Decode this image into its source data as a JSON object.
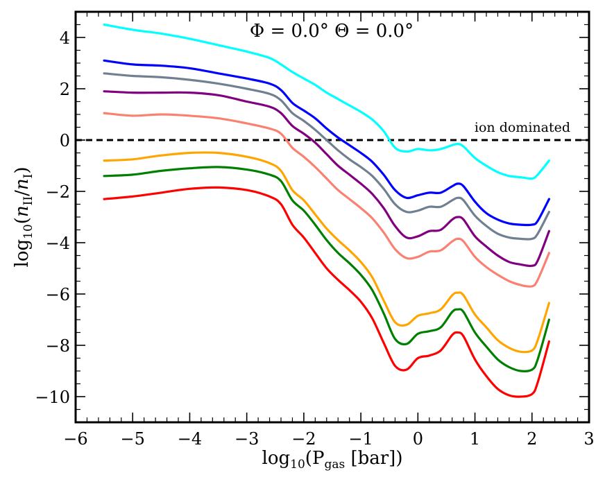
{
  "chart_data": {
    "type": "line",
    "title": "Φ = 0.0° Θ = 0.0°",
    "xlabel": "log10(P_gas [bar])",
    "xlabel_parts": {
      "pre": "log",
      "sub1": "10",
      "mid": "(P",
      "sub2": "gas",
      "post": " [bar])"
    },
    "ylabel": "log10(n_II/n_I)",
    "ylabel_parts": {
      "pre": "log",
      "sub1": "10",
      "open": "(",
      "n1": "n",
      "sub2": "II",
      "slash": "/",
      "n2": "n",
      "sub3": "I",
      "close": ")"
    },
    "xlim": [
      -6,
      3
    ],
    "ylim": [
      -11,
      5
    ],
    "x_ticks": [
      -6,
      -5,
      -4,
      -3,
      -2,
      -1,
      0,
      1,
      2,
      3
    ],
    "x_tick_labels": [
      "−6",
      "−5",
      "−4",
      "−3",
      "−2",
      "−1",
      "0",
      "1",
      "2",
      "3"
    ],
    "y_ticks": [
      -10,
      -8,
      -6,
      -4,
      -2,
      0,
      2,
      4
    ],
    "y_tick_labels": [
      "−10",
      "−8",
      "−6",
      "−4",
      "−2",
      "0",
      "2",
      "4"
    ],
    "reference_line": {
      "y": 0,
      "style": "dashed",
      "color": "#000000",
      "label": "ion dominated"
    },
    "x": [
      -5.5,
      -5.0,
      -4.5,
      -4.0,
      -3.5,
      -3.0,
      -2.6,
      -2.4,
      -2.2,
      -2.0,
      -1.8,
      -1.6,
      -1.4,
      -1.2,
      -1.0,
      -0.8,
      -0.6,
      -0.4,
      -0.2,
      0.0,
      0.2,
      0.4,
      0.6,
      0.7,
      0.8,
      1.0,
      1.2,
      1.4,
      1.6,
      1.8,
      2.0,
      2.1,
      2.3
    ],
    "series": [
      {
        "name": "cyan",
        "color": "#00ffff",
        "values": [
          4.5,
          4.3,
          4.15,
          3.95,
          3.7,
          3.45,
          3.2,
          2.95,
          2.65,
          2.4,
          2.15,
          1.85,
          1.6,
          1.35,
          1.1,
          0.8,
          0.35,
          -0.3,
          -0.45,
          -0.35,
          -0.4,
          -0.35,
          -0.2,
          -0.15,
          -0.25,
          -0.7,
          -1.0,
          -1.25,
          -1.4,
          -1.45,
          -1.5,
          -1.35,
          -0.8
        ]
      },
      {
        "name": "blue",
        "color": "#0000ff",
        "values": [
          3.1,
          2.95,
          2.9,
          2.8,
          2.6,
          2.4,
          2.2,
          1.95,
          1.45,
          1.15,
          0.85,
          0.45,
          0.1,
          -0.2,
          -0.5,
          -0.85,
          -1.35,
          -1.95,
          -2.25,
          -2.15,
          -2.05,
          -2.05,
          -1.8,
          -1.7,
          -1.8,
          -2.4,
          -2.85,
          -3.1,
          -3.25,
          -3.3,
          -3.3,
          -3.15,
          -2.3
        ]
      },
      {
        "name": "slategray",
        "color": "#708090",
        "values": [
          2.6,
          2.5,
          2.45,
          2.35,
          2.2,
          2.0,
          1.8,
          1.55,
          1.05,
          0.75,
          0.4,
          0.0,
          -0.4,
          -0.75,
          -1.05,
          -1.4,
          -1.9,
          -2.5,
          -2.8,
          -2.75,
          -2.6,
          -2.6,
          -2.35,
          -2.25,
          -2.35,
          -2.95,
          -3.35,
          -3.65,
          -3.8,
          -3.85,
          -3.85,
          -3.65,
          -2.8
        ]
      },
      {
        "name": "purple",
        "color": "#800080",
        "values": [
          1.9,
          1.85,
          1.85,
          1.85,
          1.75,
          1.5,
          1.3,
          1.05,
          0.55,
          0.25,
          -0.1,
          -0.55,
          -1.0,
          -1.35,
          -1.7,
          -2.1,
          -2.65,
          -3.35,
          -3.8,
          -3.75,
          -3.55,
          -3.5,
          -3.1,
          -3.0,
          -3.1,
          -3.75,
          -4.15,
          -4.5,
          -4.75,
          -4.85,
          -4.9,
          -4.7,
          -3.55
        ]
      },
      {
        "name": "salmon",
        "color": "#fa8072",
        "values": [
          1.05,
          0.95,
          1.0,
          0.95,
          0.85,
          0.65,
          0.45,
          0.25,
          -0.3,
          -0.65,
          -1.05,
          -1.5,
          -1.95,
          -2.3,
          -2.65,
          -3.05,
          -3.6,
          -4.25,
          -4.6,
          -4.55,
          -4.35,
          -4.3,
          -3.95,
          -3.85,
          -3.95,
          -4.55,
          -4.95,
          -5.25,
          -5.5,
          -5.65,
          -5.7,
          -5.45,
          -4.4
        ]
      },
      {
        "name": "orange",
        "color": "#ffa500",
        "values": [
          -0.8,
          -0.75,
          -0.6,
          -0.5,
          -0.5,
          -0.65,
          -0.9,
          -1.2,
          -1.95,
          -2.35,
          -2.9,
          -3.45,
          -3.9,
          -4.3,
          -4.75,
          -5.35,
          -6.25,
          -7.1,
          -7.2,
          -6.85,
          -6.75,
          -6.6,
          -6.05,
          -5.95,
          -6.05,
          -6.8,
          -7.3,
          -7.8,
          -8.1,
          -8.25,
          -8.2,
          -7.8,
          -6.35
        ]
      },
      {
        "name": "green",
        "color": "#008000",
        "values": [
          -1.4,
          -1.35,
          -1.2,
          -1.1,
          -1.05,
          -1.15,
          -1.35,
          -1.6,
          -2.35,
          -2.75,
          -3.3,
          -3.9,
          -4.4,
          -4.8,
          -5.25,
          -5.85,
          -6.75,
          -7.75,
          -7.95,
          -7.55,
          -7.45,
          -7.3,
          -6.7,
          -6.6,
          -6.7,
          -7.5,
          -8.05,
          -8.55,
          -8.85,
          -9.0,
          -8.95,
          -8.55,
          -7.0
        ]
      },
      {
        "name": "red",
        "color": "#ff0000",
        "values": [
          -2.3,
          -2.2,
          -2.05,
          -1.9,
          -1.85,
          -1.95,
          -2.2,
          -2.5,
          -3.3,
          -3.8,
          -4.4,
          -5.0,
          -5.45,
          -5.85,
          -6.3,
          -6.95,
          -7.9,
          -8.8,
          -8.95,
          -8.5,
          -8.4,
          -8.2,
          -7.6,
          -7.5,
          -7.65,
          -8.55,
          -9.2,
          -9.7,
          -9.95,
          -10.0,
          -9.9,
          -9.45,
          -7.85
        ]
      }
    ]
  }
}
